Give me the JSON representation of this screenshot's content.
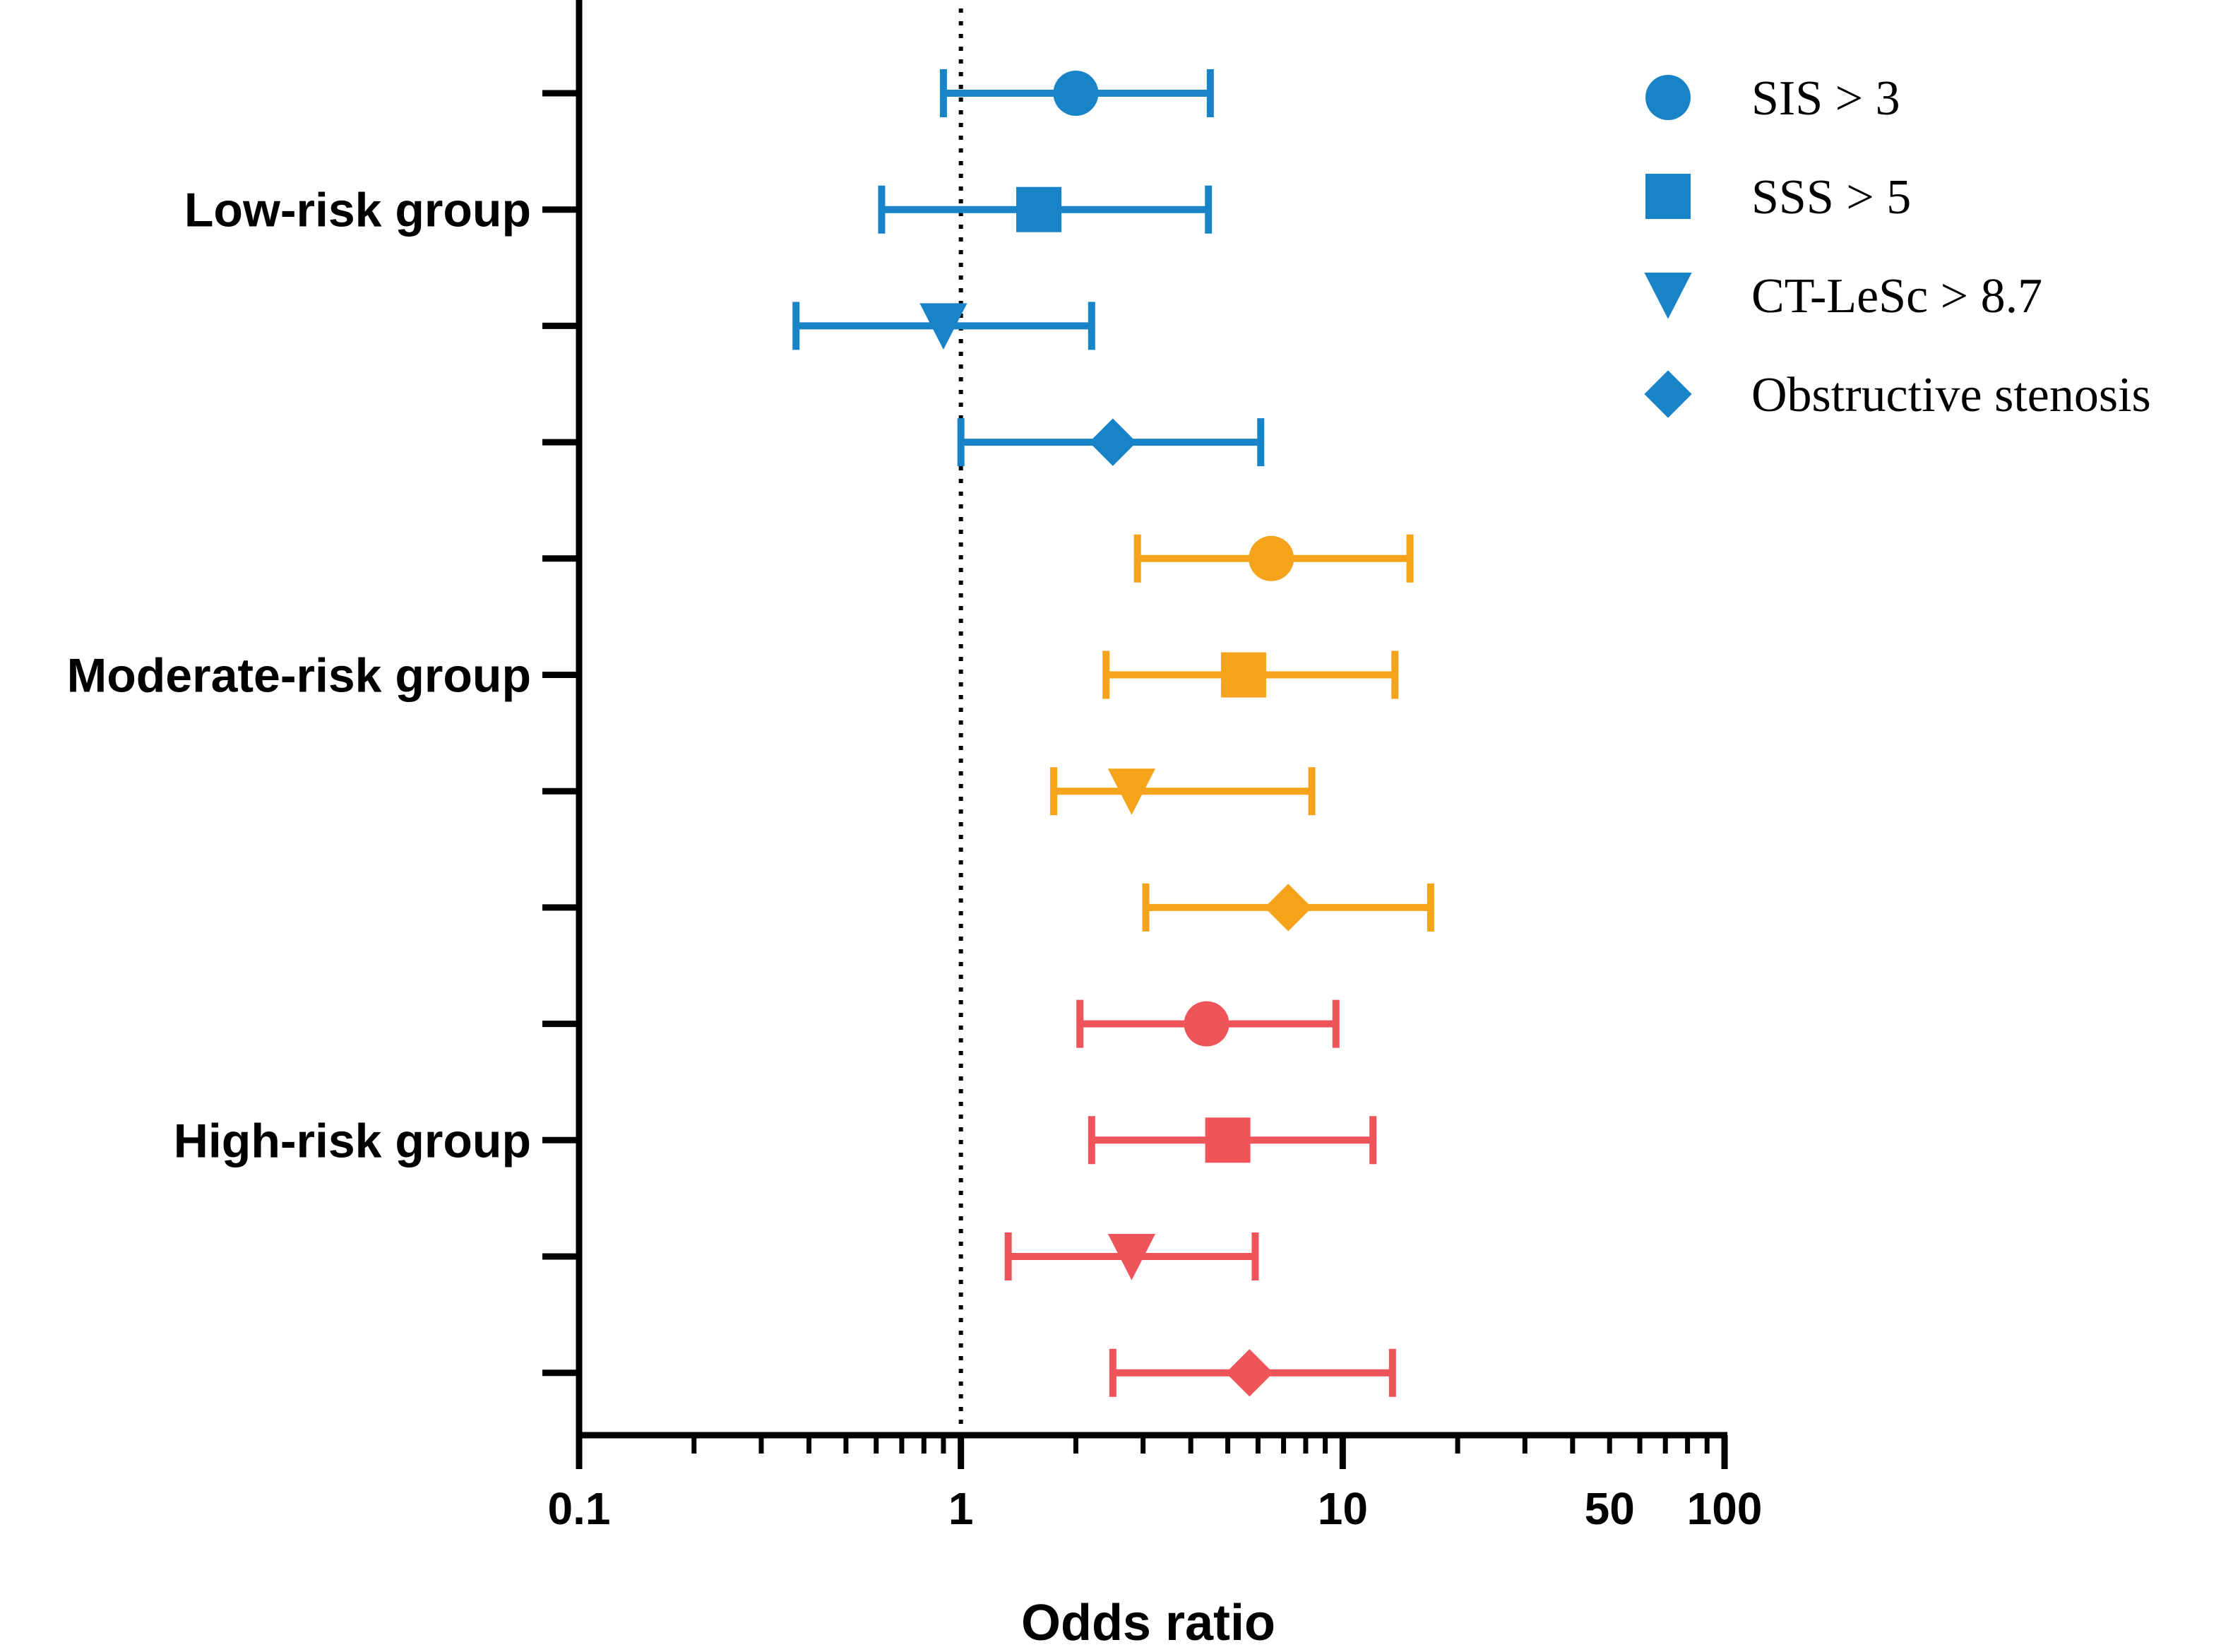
{
  "chart_data": {
    "type": "forest",
    "xlabel": "Odds ratio",
    "xscale": "log",
    "xlim": [
      0.1,
      100
    ],
    "xticks": [
      0.1,
      1,
      10,
      50,
      100
    ],
    "xtick_labels": [
      "0.1",
      "1",
      "10",
      "50",
      "100"
    ],
    "reference_line": 1,
    "groups": [
      {
        "label": "Low-risk group",
        "color": "#1884C7"
      },
      {
        "label": "Moderate-risk group",
        "color": "#F5A31A"
      },
      {
        "label": "High-risk group",
        "color": "#EE5459"
      }
    ],
    "legend": [
      {
        "label": "SIS > 3",
        "marker": "circle"
      },
      {
        "label": "SSS > 5",
        "marker": "square"
      },
      {
        "label": "CT-LeSc > 8.7",
        "marker": "triangle-down"
      },
      {
        "label": "Obstructive stenosis",
        "marker": "diamond"
      }
    ],
    "legend_color": "#1884C7",
    "rows": [
      {
        "group": 0,
        "marker": "circle",
        "or": 2.0,
        "lo": 0.9,
        "hi": 4.5
      },
      {
        "group": 0,
        "marker": "square",
        "or": 1.6,
        "lo": 0.62,
        "hi": 4.45
      },
      {
        "group": 0,
        "marker": "triangle-down",
        "or": 0.9,
        "lo": 0.37,
        "hi": 2.2
      },
      {
        "group": 0,
        "marker": "diamond",
        "or": 2.5,
        "lo": 1.0,
        "hi": 6.1
      },
      {
        "group": 1,
        "marker": "circle",
        "or": 6.5,
        "lo": 2.9,
        "hi": 15.0
      },
      {
        "group": 1,
        "marker": "square",
        "or": 5.5,
        "lo": 2.4,
        "hi": 13.7
      },
      {
        "group": 1,
        "marker": "triangle-down",
        "or": 2.8,
        "lo": 1.75,
        "hi": 8.3
      },
      {
        "group": 1,
        "marker": "diamond",
        "or": 7.2,
        "lo": 3.05,
        "hi": 17.0
      },
      {
        "group": 2,
        "marker": "circle",
        "or": 4.4,
        "lo": 2.05,
        "hi": 9.6
      },
      {
        "group": 2,
        "marker": "square",
        "or": 5.0,
        "lo": 2.2,
        "hi": 12.0
      },
      {
        "group": 2,
        "marker": "triangle-down",
        "or": 2.8,
        "lo": 1.33,
        "hi": 5.9
      },
      {
        "group": 2,
        "marker": "diamond",
        "or": 5.7,
        "lo": 2.5,
        "hi": 13.5
      }
    ]
  }
}
